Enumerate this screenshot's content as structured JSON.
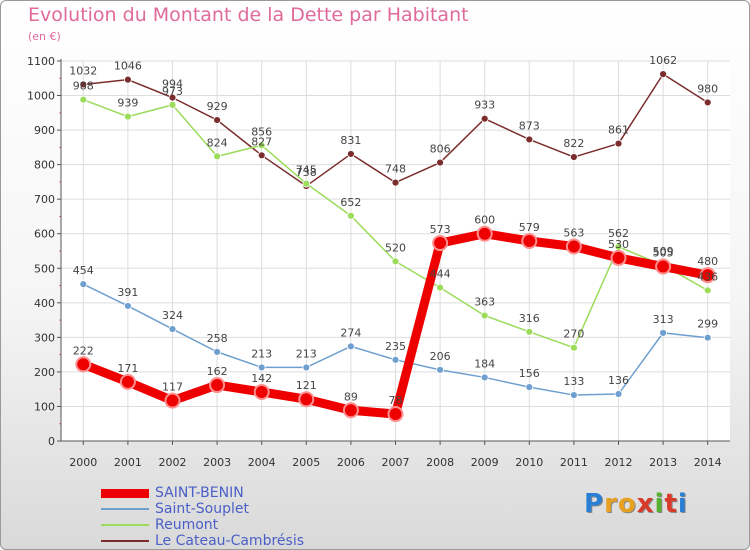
{
  "title": "Evolution du Montant de la Dette par Habitant",
  "subtitle": "(en €)",
  "logo": [
    "P",
    "r",
    "o",
    "x",
    "i",
    "t",
    "i"
  ],
  "logo_colors": [
    "#2a7fd4",
    "#e8a020",
    "#e8a020",
    "#d93a2a",
    "#58b030",
    "#d93a2a",
    "#2a7fd4"
  ],
  "chart_data": {
    "type": "line",
    "title": "Evolution du Montant de la Dette par Habitant",
    "ylabel": "(en €)",
    "xlabel": "",
    "ylim": [
      0,
      1100
    ],
    "yticks": [
      "0",
      "100",
      "200",
      "300",
      "400",
      "500",
      "600",
      "700",
      "800",
      "900",
      "1000",
      "1100"
    ],
    "x": [
      "2000",
      "2001",
      "2002",
      "2003",
      "2004",
      "2005",
      "2006",
      "2007",
      "2008",
      "2009",
      "2010",
      "2011",
      "2012",
      "2013",
      "2014"
    ],
    "grid": true,
    "legend_position": "bottom-left",
    "series": [
      {
        "name": "SAINT-BENIN",
        "color": "#ee0000",
        "width": 9,
        "values": [
          222,
          171,
          117,
          162,
          142,
          121,
          89,
          78,
          573,
          600,
          579,
          563,
          530,
          505,
          480
        ],
        "labels": [
          "222",
          "171",
          "117",
          "162",
          "142",
          "121",
          "89",
          "78",
          "573",
          "600",
          "579",
          "563",
          "530",
          "505",
          "480"
        ]
      },
      {
        "name": "Saint-Souplet",
        "color": "#6f9fcf",
        "width": 1.5,
        "values": [
          454,
          391,
          324,
          258,
          213,
          213,
          274,
          235,
          206,
          184,
          156,
          133,
          136,
          313,
          299
        ],
        "labels": [
          "454",
          "391",
          "324",
          "258",
          "213",
          "213",
          "274",
          "235",
          "206",
          "184",
          "156",
          "133",
          "136",
          "313",
          "299"
        ]
      },
      {
        "name": "Reumont",
        "color": "#9bdc5a",
        "width": 1.5,
        "values": [
          988,
          939,
          973,
          824,
          856,
          745,
          652,
          520,
          444,
          363,
          316,
          270,
          562,
          509,
          436
        ],
        "labels": [
          "988",
          "939",
          "973",
          "824",
          "856",
          "745",
          "652",
          "520",
          "444",
          "363",
          "316",
          "270",
          "562",
          "509",
          "436"
        ]
      },
      {
        "name": "Le Cateau-Cambrésis",
        "color": "#7b2d2d",
        "width": 1.5,
        "values": [
          1032,
          1046,
          994,
          929,
          827,
          738,
          831,
          748,
          806,
          933,
          873,
          822,
          861,
          1062,
          980
        ],
        "labels": [
          "1032",
          "1046",
          "994",
          "929",
          "827",
          "738",
          "831",
          "748",
          "806",
          "933",
          "873",
          "822",
          "861",
          "1062",
          "980"
        ]
      }
    ]
  }
}
